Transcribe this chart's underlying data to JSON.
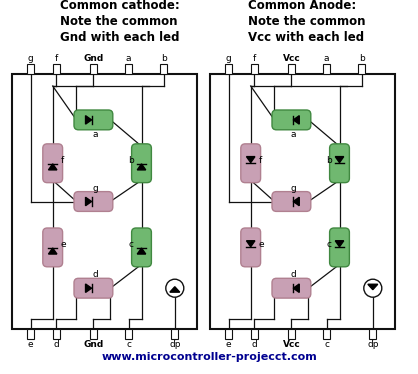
{
  "title_left": "Common cathode:\nNote the common\nGnd with each led",
  "title_right": "Common Anode:\nNote the common\nVcc with each led",
  "footer": "www.microcontroller-projecct.com",
  "pink_fill": "#c8a0b4",
  "pink_edge": "#b08090",
  "green_fill": "#70b870",
  "green_edge": "#408840",
  "box_color": "#111111",
  "line_color": "#111111",
  "title_fontsize": 8.5,
  "pin_label_fontsize": 6.5,
  "seg_label_fontsize": 6.5,
  "footer_fontsize": 8.0
}
